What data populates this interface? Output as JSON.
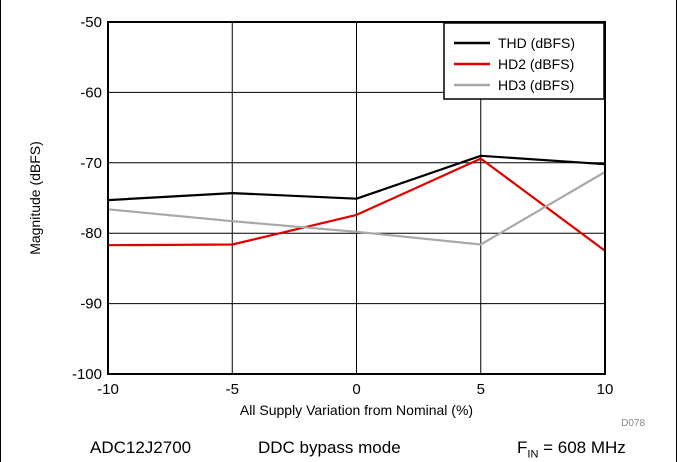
{
  "chart_data": {
    "type": "line",
    "title": "",
    "xlabel": "All Supply Variation from Nominal (%)",
    "ylabel": "Magnitude (dBFS)",
    "xlim": [
      -10,
      10
    ],
    "ylim": [
      -100,
      -50
    ],
    "x": [
      -10,
      -5,
      0,
      5,
      10
    ],
    "x_ticks": [
      "-10",
      "-5",
      "0",
      "5",
      "10"
    ],
    "y_ticks": [
      "-50",
      "-60",
      "-70",
      "-80",
      "-90",
      "-100"
    ],
    "grid": true,
    "legend_position": "top-right",
    "series": [
      {
        "name": "THD (dBFS)",
        "color": "#000000",
        "values": [
          -75.3,
          -74.3,
          -75.1,
          -69.0,
          -70.2
        ]
      },
      {
        "name": "HD2 (dBFS)",
        "color": "#e00000",
        "values": [
          -81.7,
          -81.6,
          -77.4,
          -69.4,
          -82.5
        ]
      },
      {
        "name": "HD3 (dBFS)",
        "color": "#a8a8a8",
        "values": [
          -76.6,
          -78.3,
          -79.8,
          -81.6,
          -71.3
        ]
      }
    ],
    "figure_code": "D078"
  },
  "caption": {
    "device": "ADC12J2700",
    "mode": "DDC bypass mode",
    "fin_prefix": "F",
    "fin_sub": "IN",
    "fin_value": " = 608 MHz"
  }
}
